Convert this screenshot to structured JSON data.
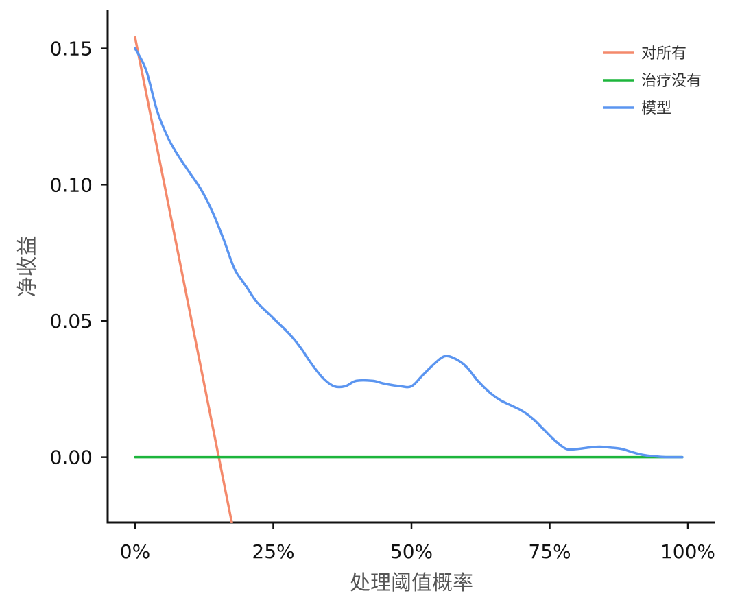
{
  "chart_data": {
    "type": "line",
    "title": "",
    "xlabel": "处理阈值概率",
    "ylabel": "净收益",
    "xlim": [
      0,
      1
    ],
    "ylim": [
      -0.024,
      0.164
    ],
    "x_ticks": [
      0,
      0.25,
      0.5,
      0.75,
      1.0
    ],
    "x_tick_labels": [
      "0%",
      "25%",
      "50%",
      "75%",
      "100%"
    ],
    "y_ticks": [
      0,
      0.05,
      0.1,
      0.15
    ],
    "y_tick_labels": [
      "0.00",
      "0.05",
      "0.10",
      "0.15"
    ],
    "grid": false,
    "legend_position": "top-right",
    "series": [
      {
        "name": "对所有",
        "color": "#f4896b",
        "x": [
          0.0,
          0.175
        ],
        "y": [
          0.154,
          -0.024
        ]
      },
      {
        "name": "治疗没有",
        "color": "#1db53c",
        "x": [
          0.0,
          0.99
        ],
        "y": [
          0.0,
          0.0
        ]
      },
      {
        "name": "模型",
        "color": "#5b95f0",
        "x": [
          0.0,
          0.02,
          0.04,
          0.06,
          0.08,
          0.1,
          0.12,
          0.14,
          0.16,
          0.18,
          0.2,
          0.22,
          0.25,
          0.28,
          0.3,
          0.32,
          0.34,
          0.36,
          0.38,
          0.4,
          0.43,
          0.45,
          0.48,
          0.5,
          0.52,
          0.54,
          0.56,
          0.58,
          0.6,
          0.62,
          0.64,
          0.66,
          0.68,
          0.7,
          0.72,
          0.74,
          0.76,
          0.78,
          0.8,
          0.82,
          0.84,
          0.86,
          0.88,
          0.9,
          0.92,
          0.94,
          0.96,
          0.98,
          0.99
        ],
        "y": [
          0.15,
          0.142,
          0.127,
          0.117,
          0.11,
          0.104,
          0.098,
          0.09,
          0.08,
          0.069,
          0.063,
          0.057,
          0.051,
          0.045,
          0.04,
          0.034,
          0.029,
          0.026,
          0.026,
          0.028,
          0.028,
          0.027,
          0.026,
          0.026,
          0.03,
          0.034,
          0.037,
          0.036,
          0.033,
          0.028,
          0.024,
          0.021,
          0.019,
          0.017,
          0.014,
          0.01,
          0.006,
          0.003,
          0.003,
          0.0035,
          0.0038,
          0.0035,
          0.003,
          0.0018,
          0.0008,
          0.0003,
          0.0,
          0.0,
          0.0
        ]
      }
    ]
  }
}
